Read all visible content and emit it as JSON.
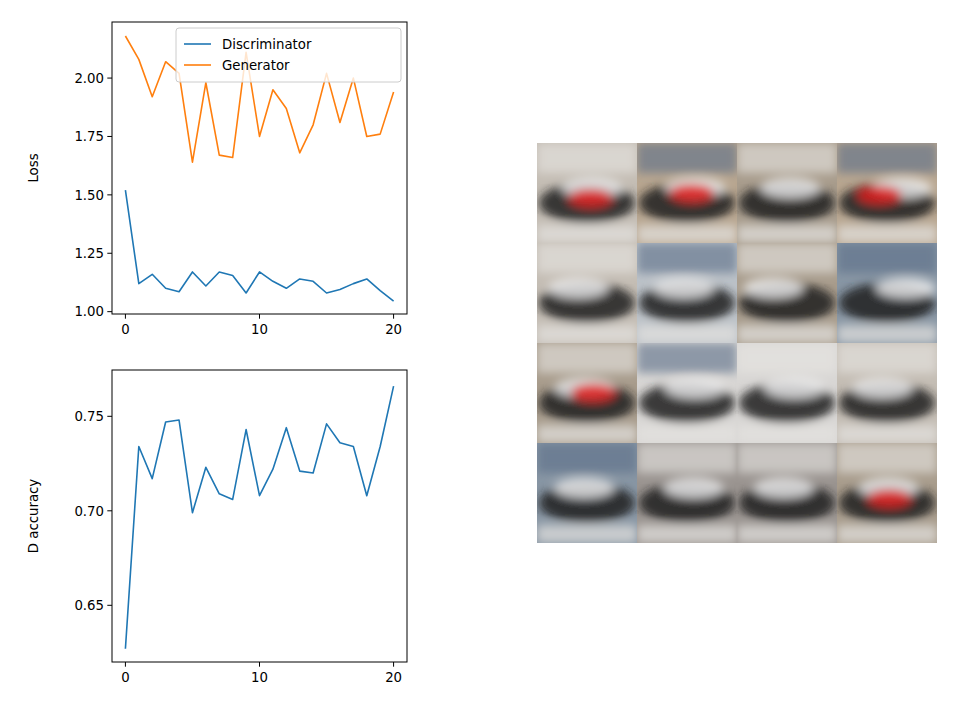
{
  "chart_data": [
    {
      "type": "line",
      "y_label": "Loss",
      "x": [
        0,
        1,
        2,
        3,
        4,
        5,
        6,
        7,
        8,
        9,
        10,
        11,
        12,
        13,
        14,
        15,
        16,
        17,
        18,
        19,
        20
      ],
      "series": [
        {
          "name": "Discriminator",
          "color": "#1f77b4",
          "values": [
            1.52,
            1.12,
            1.16,
            1.1,
            1.085,
            1.17,
            1.11,
            1.17,
            1.155,
            1.08,
            1.17,
            1.13,
            1.1,
            1.14,
            1.13,
            1.08,
            1.095,
            1.12,
            1.14,
            1.09,
            1.045
          ]
        },
        {
          "name": "Generator",
          "color": "#ff7f0e",
          "values": [
            2.18,
            2.08,
            1.92,
            2.07,
            2.02,
            1.64,
            1.98,
            1.67,
            1.66,
            2.11,
            1.75,
            1.95,
            1.87,
            1.68,
            1.8,
            2.02,
            1.81,
            2.0,
            1.75,
            1.76,
            1.94
          ]
        }
      ],
      "xlim": [
        -1,
        21
      ],
      "xticks": [
        0,
        10,
        20
      ],
      "ylim": [
        0.99,
        2.24
      ],
      "yticks": [
        {
          "value": 1,
          "label": "1.00"
        },
        1.25,
        {
          "value": 1.5,
          "label": "1.50"
        },
        1.75,
        {
          "value": 2,
          "label": "2.00"
        }
      ],
      "grid": false,
      "legend": "upper right"
    },
    {
      "type": "line",
      "y_label": "D accuracy",
      "x": [
        0,
        1,
        2,
        3,
        4,
        5,
        6,
        7,
        8,
        9,
        10,
        11,
        12,
        13,
        14,
        15,
        16,
        17,
        18,
        19,
        20
      ],
      "series": [
        {
          "name": "D accuracy",
          "color": "#1f77b4",
          "values": [
            0.627,
            0.734,
            0.717,
            0.747,
            0.748,
            0.699,
            0.723,
            0.709,
            0.706,
            0.743,
            0.708,
            0.722,
            0.744,
            0.721,
            0.72,
            0.746,
            0.736,
            0.734,
            0.708,
            0.734,
            0.766
          ]
        }
      ],
      "xlim": [
        -1,
        21
      ],
      "xticks": [
        0,
        10,
        20
      ],
      "ylim": [
        0.62,
        0.7745
      ],
      "yticks": [
        0.65,
        {
          "value": 0.7,
          "label": "0.70"
        },
        0.75
      ],
      "grid": false
    }
  ]
}
